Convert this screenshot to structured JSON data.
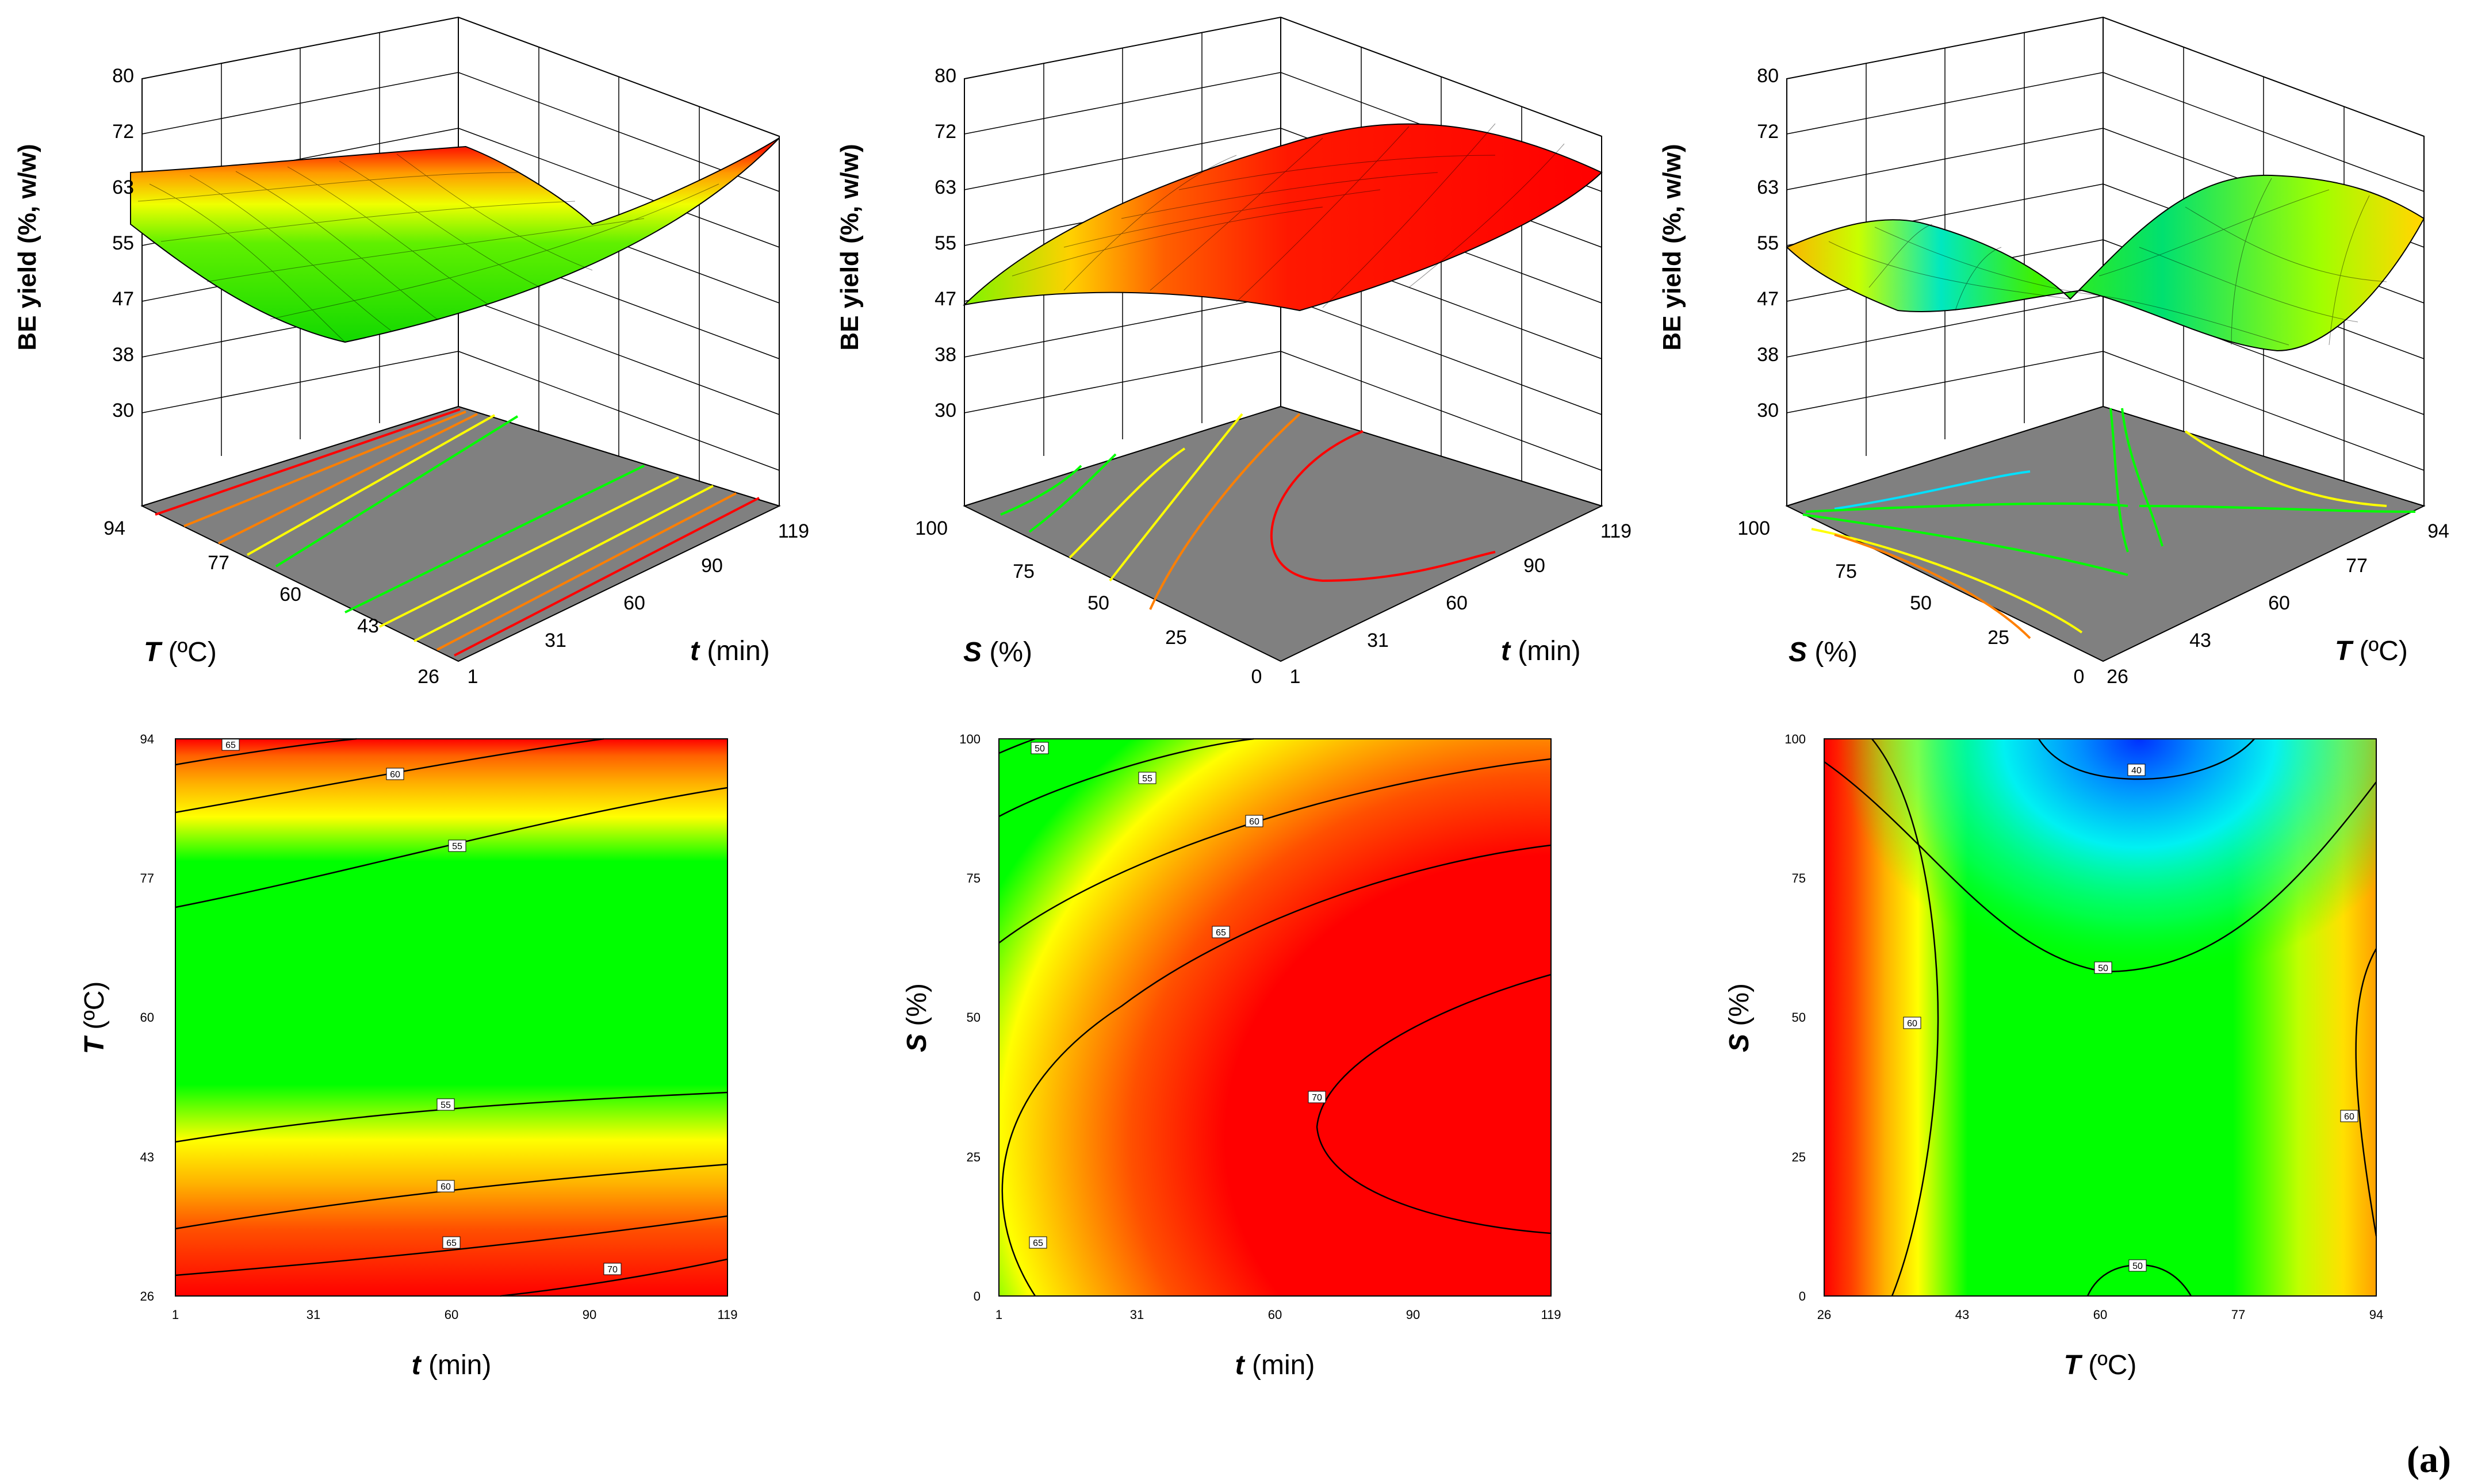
{
  "panel_label": "(a)",
  "colors": {
    "red": "#ff0000",
    "orange": "#ff7f00",
    "yellow": "#ffff00",
    "green": "#00ff00",
    "cyan": "#00ffff",
    "blue": "#0033ff",
    "floor": "#808080"
  },
  "chart_data": [
    {
      "id": "surf_t_T",
      "type": "surface",
      "zlabel": "BE yield (%, w/w)",
      "zticks": [
        "30",
        "38",
        "47",
        "55",
        "63",
        "72",
        "80"
      ],
      "x": {
        "sym": "t",
        "unit": " (min)",
        "ticks": [
          "1",
          "31",
          "60",
          "90",
          "119"
        ]
      },
      "y": {
        "sym": "T",
        "unit": " (ºC)",
        "ticks": [
          "26",
          "43",
          "60",
          "77",
          "94"
        ]
      }
    },
    {
      "id": "surf_t_S",
      "type": "surface",
      "zlabel": "BE yield (%, w/w)",
      "zticks": [
        "30",
        "38",
        "47",
        "55",
        "63",
        "72",
        "80"
      ],
      "x": {
        "sym": "t",
        "unit": " (min)",
        "ticks": [
          "1",
          "31",
          "60",
          "90",
          "119"
        ]
      },
      "y": {
        "sym": "S",
        "unit": " (%)",
        "ticks": [
          "0",
          "25",
          "50",
          "75",
          "100"
        ]
      }
    },
    {
      "id": "surf_T_S",
      "type": "surface",
      "zlabel": "BE yield (%, w/w)",
      "zticks": [
        "30",
        "38",
        "47",
        "55",
        "63",
        "72",
        "80"
      ],
      "x": {
        "sym": "T",
        "unit": " (ºC)",
        "ticks": [
          "26",
          "43",
          "60",
          "77",
          "94"
        ]
      },
      "y": {
        "sym": "S",
        "unit": " (%)",
        "ticks": [
          "0",
          "25",
          "50",
          "75",
          "100"
        ]
      }
    },
    {
      "id": "cont_t_T",
      "type": "heatmap",
      "x": {
        "sym": "t",
        "unit": " (min)",
        "ticks": [
          "1",
          "31",
          "60",
          "90",
          "119"
        ]
      },
      "y": {
        "sym": "T",
        "unit": " (ºC)",
        "ticks": [
          "26",
          "43",
          "60",
          "77",
          "94"
        ]
      },
      "contour_labels": [
        "65",
        "60",
        "55",
        "55",
        "60",
        "65",
        "70"
      ]
    },
    {
      "id": "cont_t_S",
      "type": "heatmap",
      "x": {
        "sym": "t",
        "unit": " (min)",
        "ticks": [
          "1",
          "31",
          "60",
          "90",
          "119"
        ]
      },
      "y": {
        "sym": "S",
        "unit": " (%)",
        "ticks": [
          "0",
          "25",
          "50",
          "75",
          "100"
        ]
      },
      "contour_labels": [
        "50",
        "55",
        "60",
        "65",
        "70",
        "65"
      ]
    },
    {
      "id": "cont_T_S",
      "type": "heatmap",
      "x": {
        "sym": "T",
        "unit": " (ºC)",
        "ticks": [
          "26",
          "43",
          "60",
          "77",
          "94"
        ]
      },
      "y": {
        "sym": "S",
        "unit": " (%)",
        "ticks": [
          "0",
          "25",
          "50",
          "75",
          "100"
        ]
      },
      "contour_labels": [
        "40",
        "50",
        "60",
        "60",
        "50"
      ]
    }
  ]
}
